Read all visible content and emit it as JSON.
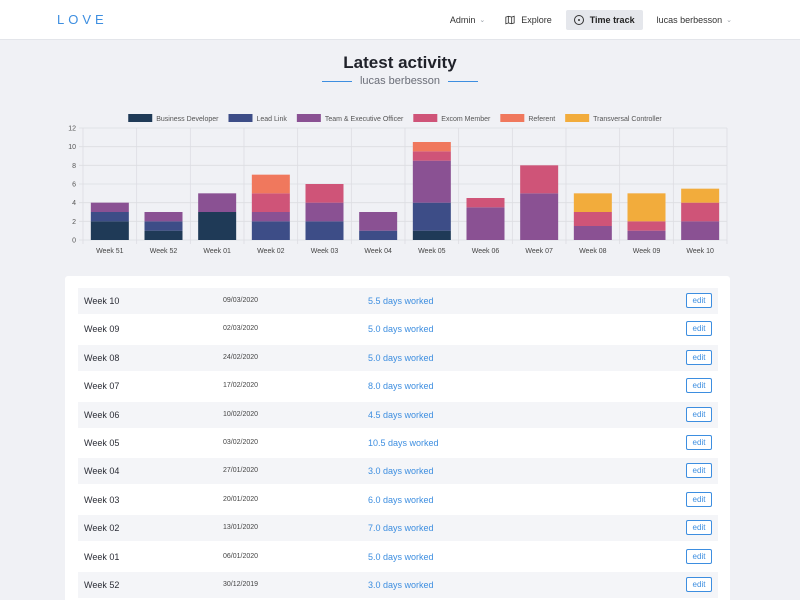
{
  "header": {
    "logo": "LOVE",
    "nav": [
      {
        "label": "Admin",
        "has_dropdown": true
      },
      {
        "label": "Explore",
        "icon": "map-icon"
      },
      {
        "label": "Time track",
        "icon": "clock-icon",
        "active": true
      },
      {
        "label": "lucas berbesson",
        "has_dropdown": true
      }
    ]
  },
  "page": {
    "title": "Latest activity",
    "subtitle": "lucas berbesson"
  },
  "colors": {
    "accent": "#3d8ee0",
    "Business Developer": "#1f3a57",
    "Lead Link": "#3d4d87",
    "Team & Executive Officer": "#8a5193",
    "Excom Member": "#cf5478",
    "Referent": "#f0785d",
    "Transversal Controller": "#f2ac3c"
  },
  "chart_data": {
    "type": "bar",
    "stacked": true,
    "categories": [
      "Week 51",
      "Week 52",
      "Week 01",
      "Week 02",
      "Week 03",
      "Week 04",
      "Week 05",
      "Week 06",
      "Week 07",
      "Week 08",
      "Week 09",
      "Week 10"
    ],
    "ylim": [
      0,
      12
    ],
    "yticks": [
      0,
      2,
      4,
      6,
      8,
      10,
      12
    ],
    "grid": true,
    "legend": "top",
    "series": [
      {
        "name": "Business Developer",
        "values": [
          2,
          1,
          3,
          0,
          0,
          0,
          1,
          0,
          0,
          0,
          0,
          0
        ]
      },
      {
        "name": "Lead Link",
        "values": [
          1,
          1,
          0,
          2,
          2,
          1,
          3,
          0,
          0,
          0,
          0,
          0
        ]
      },
      {
        "name": "Team & Executive Officer",
        "values": [
          1,
          1,
          2,
          1,
          2,
          2,
          4.5,
          3.5,
          5,
          1.5,
          1,
          2
        ]
      },
      {
        "name": "Excom Member",
        "values": [
          0,
          0,
          0,
          2,
          2,
          0,
          1,
          1,
          3,
          1.5,
          1,
          2
        ]
      },
      {
        "name": "Referent",
        "values": [
          0,
          0,
          0,
          2,
          0,
          0,
          1,
          0,
          0,
          0,
          0,
          0
        ]
      },
      {
        "name": "Transversal Controller",
        "values": [
          0,
          0,
          0,
          0,
          0,
          0,
          0,
          0,
          0,
          2,
          3,
          1.5
        ]
      }
    ]
  },
  "table": {
    "edit_label": "edit",
    "rows": [
      {
        "week": "Week 10",
        "date": "09/03/2020",
        "days": "5.5 days worked"
      },
      {
        "week": "Week 09",
        "date": "02/03/2020",
        "days": "5.0 days worked"
      },
      {
        "week": "Week 08",
        "date": "24/02/2020",
        "days": "5.0 days worked"
      },
      {
        "week": "Week 07",
        "date": "17/02/2020",
        "days": "8.0 days worked"
      },
      {
        "week": "Week 06",
        "date": "10/02/2020",
        "days": "4.5 days worked"
      },
      {
        "week": "Week 05",
        "date": "03/02/2020",
        "days": "10.5 days worked"
      },
      {
        "week": "Week 04",
        "date": "27/01/2020",
        "days": "3.0 days worked"
      },
      {
        "week": "Week 03",
        "date": "20/01/2020",
        "days": "6.0 days worked"
      },
      {
        "week": "Week 02",
        "date": "13/01/2020",
        "days": "7.0 days worked"
      },
      {
        "week": "Week 01",
        "date": "06/01/2020",
        "days": "5.0 days worked"
      },
      {
        "week": "Week 52",
        "date": "30/12/2019",
        "days": "3.0 days worked"
      }
    ]
  }
}
